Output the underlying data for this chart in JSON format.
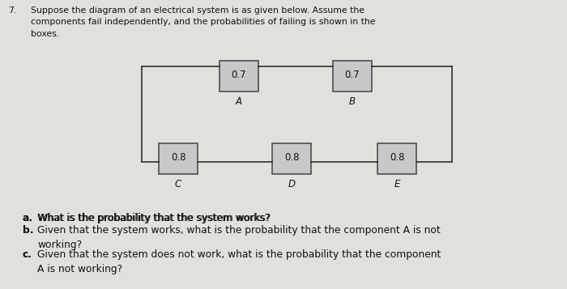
{
  "bg_color": "#e2e0dc",
  "title_num": "7.",
  "title_text": "Suppose the diagram of an electrical system is as given below. Assume the\ncomponents fail independently, and the probabilities of failing is shown in the\nboxes.",
  "question_a": "a.  What is the probability that the system works?",
  "question_b": "b.  Given that the system works, what is the probability that the component A is not\nworking?",
  "question_c": "c.  Given that the system does not work, what is the probability that the component\nA is not working?",
  "box_color": "#c8c8c8",
  "box_edge_color": "#444444",
  "line_color": "#222222",
  "font_size_title": 7.8,
  "font_size_box": 8.5,
  "font_size_label": 8.5,
  "font_size_questions": 8.8,
  "components": [
    {
      "label": "A",
      "value": "0.7"
    },
    {
      "label": "B",
      "value": "0.7"
    },
    {
      "label": "C",
      "value": "0.8"
    },
    {
      "label": "D",
      "value": "0.8"
    },
    {
      "label": "E",
      "value": "0.8"
    }
  ]
}
